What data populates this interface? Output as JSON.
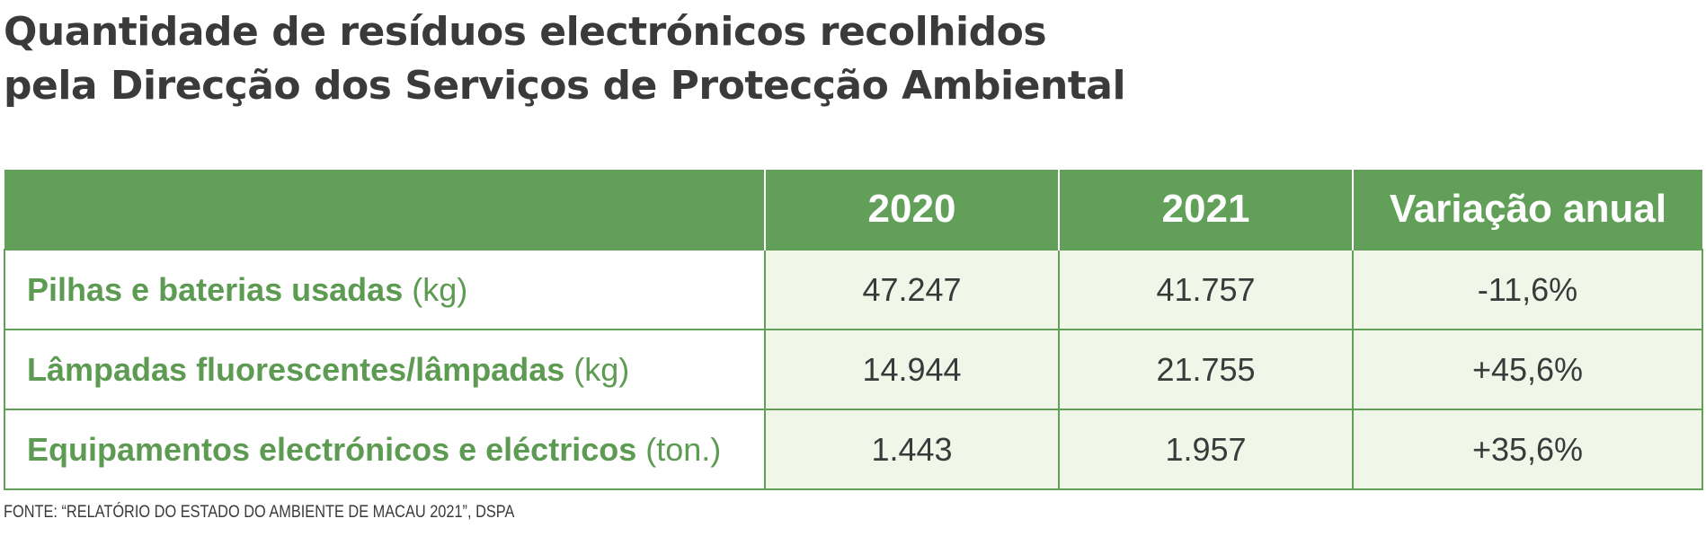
{
  "chart_data": {
    "type": "table",
    "title_lines": [
      "Quantidade de resíduos electrónicos recolhidos",
      "pela Direcção dos Serviços de Protecção Ambiental"
    ],
    "columns": [
      "",
      "2020",
      "2021",
      "Variação anual"
    ],
    "rows": [
      {
        "name": "Pilhas e baterias usadas",
        "unit": "(kg)",
        "values": [
          "47.247",
          "41.757",
          "-11,6%"
        ]
      },
      {
        "name": "Lâmpadas fluorescentes/lâmpadas",
        "unit": "(kg)",
        "values": [
          "14.944",
          "21.755",
          "+45,6%"
        ]
      },
      {
        "name": "Equipamentos electrónicos e eléctricos",
        "unit": "(ton.)",
        "values": [
          "1.443",
          "1.957",
          "+35,6%"
        ]
      }
    ],
    "source": "FONTE: “RELATÓRIO DO ESTADO DO AMBIENTE DE MACAU 2021”, DSPA"
  },
  "colors": {
    "header_bg": "#62a05a",
    "label_text": "#5d9a52",
    "value_bg": "#f0f6e8",
    "text": "#3a3a3a"
  }
}
